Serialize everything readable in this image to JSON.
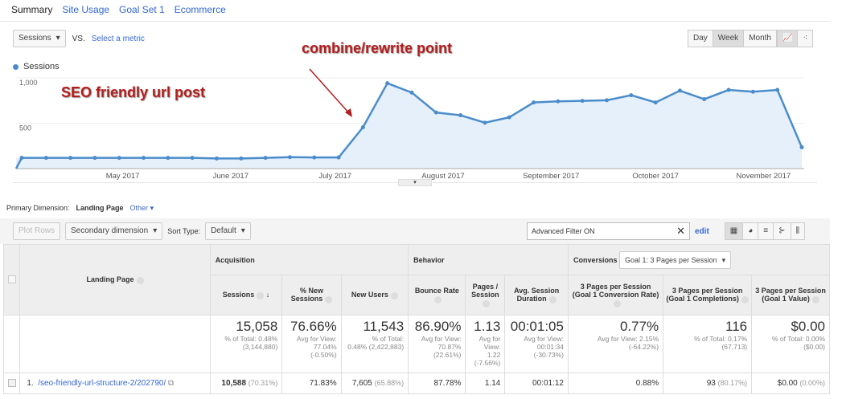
{
  "tabs": [
    "Summary",
    "Site Usage",
    "Goal Set 1",
    "Ecommerce"
  ],
  "metric_select": "Sessions",
  "vs": "VS.",
  "select_metric": "Select a metric",
  "periods": [
    "Day",
    "Week",
    "Month"
  ],
  "active_period": "Week",
  "annotations": {
    "seo": "SEO friendly url post",
    "combine": "combine/rewrite point"
  },
  "colors": {
    "series": "#4a8ccb",
    "fill": "#e6f0fa",
    "annotation": "#b71c1c"
  },
  "chart_data": {
    "type": "area",
    "legend": [
      "Sessions"
    ],
    "y_ticks": [
      "1,000",
      "500"
    ],
    "ylim": [
      0,
      1000
    ],
    "x_ticks": [
      {
        "label": "May 2017",
        "date": "2017-05-01"
      },
      {
        "label": "June 2017",
        "date": "2017-06-01"
      },
      {
        "label": "July 2017",
        "date": "2017-07-01"
      },
      {
        "label": "August 2017",
        "date": "2017-08-01"
      },
      {
        "label": "September 2017",
        "date": "2017-09-01"
      },
      {
        "label": "October 2017",
        "date": "2017-10-01"
      },
      {
        "label": "November 2017",
        "date": "2017-11-01"
      }
    ],
    "x": [
      "2017-04-02",
      "2017-04-09",
      "2017-04-16",
      "2017-04-23",
      "2017-04-30",
      "2017-05-07",
      "2017-05-14",
      "2017-05-21",
      "2017-05-28",
      "2017-06-04",
      "2017-06-11",
      "2017-06-18",
      "2017-06-25",
      "2017-07-02",
      "2017-07-09",
      "2017-07-16",
      "2017-07-23",
      "2017-07-30",
      "2017-08-06",
      "2017-08-13",
      "2017-08-20",
      "2017-08-27",
      "2017-09-03",
      "2017-09-10",
      "2017-09-17",
      "2017-09-24",
      "2017-10-01",
      "2017-10-08",
      "2017-10-15",
      "2017-10-22",
      "2017-10-29",
      "2017-11-05",
      "2017-11-12"
    ],
    "series": [
      {
        "name": "Sessions",
        "values": [
          118,
          118,
          118,
          118,
          118,
          118,
          118,
          118,
          112,
          112,
          118,
          126,
          123,
          123,
          456,
          941,
          838,
          618,
          588,
          506,
          565,
          729,
          741,
          747,
          753,
          809,
          729,
          859,
          765,
          867,
          847,
          867,
          235
        ]
      }
    ],
    "grid": true
  },
  "primary_dimension": {
    "label": "Primary Dimension:",
    "value": "Landing Page",
    "other": "Other"
  },
  "toolbar": {
    "plot_rows": "Plot Rows",
    "secondary": "Secondary dimension",
    "sort_label": "Sort Type:",
    "sort_value": "Default",
    "filter": "Advanced Filter ON",
    "edit": "edit"
  },
  "table": {
    "landing_page": "Landing Page",
    "acquisition": "Acquisition",
    "behavior": "Behavior",
    "conversions": "Conversions",
    "goal_select": "Goal 1: 3 Pages per Session",
    "columns": [
      "Sessions",
      "% New Sessions",
      "New Users",
      "Bounce Rate",
      "Pages / Session",
      "Avg. Session Duration",
      "3 Pages per Session (Goal 1 Conversion Rate)",
      "3 Pages per Session (Goal 1 Completions)",
      "3 Pages per Session (Goal 1 Value)"
    ],
    "totals": [
      {
        "v": "15,058",
        "s1": "% of Total: 0.48%",
        "s2": "(3,144,880)"
      },
      {
        "v": "76.66%",
        "s1": "Avg for View:",
        "s2": "77.04% (-0.50%)"
      },
      {
        "v": "11,543",
        "s1": "% of Total:",
        "s2": "0.48% (2,422,883)"
      },
      {
        "v": "86.90%",
        "s1": "Avg for View:",
        "s2": "70.87% (22.61%)"
      },
      {
        "v": "1.13",
        "s1": "Avg for",
        "s2": "View: 1.22 (-7.56%)"
      },
      {
        "v": "00:01:05",
        "s1": "Avg for View:",
        "s2": "00:01:34 (-30.73%)"
      },
      {
        "v": "0.77%",
        "s1": "Avg for View: 2.15%",
        "s2": "(-64.22%)"
      },
      {
        "v": "116",
        "s1": "% of Total: 0.17%",
        "s2": "(67,713)"
      },
      {
        "v": "$0.00",
        "s1": "% of Total: 0.00%",
        "s2": "($0.00)"
      }
    ],
    "rows": [
      {
        "index": "1.",
        "page": "/seo-friendly-url-structure-2/202790/",
        "cells": [
          {
            "v": "10,588",
            "p": "(70.31%)"
          },
          {
            "v": "71.83%"
          },
          {
            "v": "7,605",
            "p": "(65.88%)"
          },
          {
            "v": "87.78%"
          },
          {
            "v": "1.14"
          },
          {
            "v": "00:01:12"
          },
          {
            "v": "0.88%"
          },
          {
            "v": "93",
            "p": "(80.17%)"
          },
          {
            "v": "$0.00",
            "p": "(0.00%)"
          }
        ]
      }
    ]
  }
}
